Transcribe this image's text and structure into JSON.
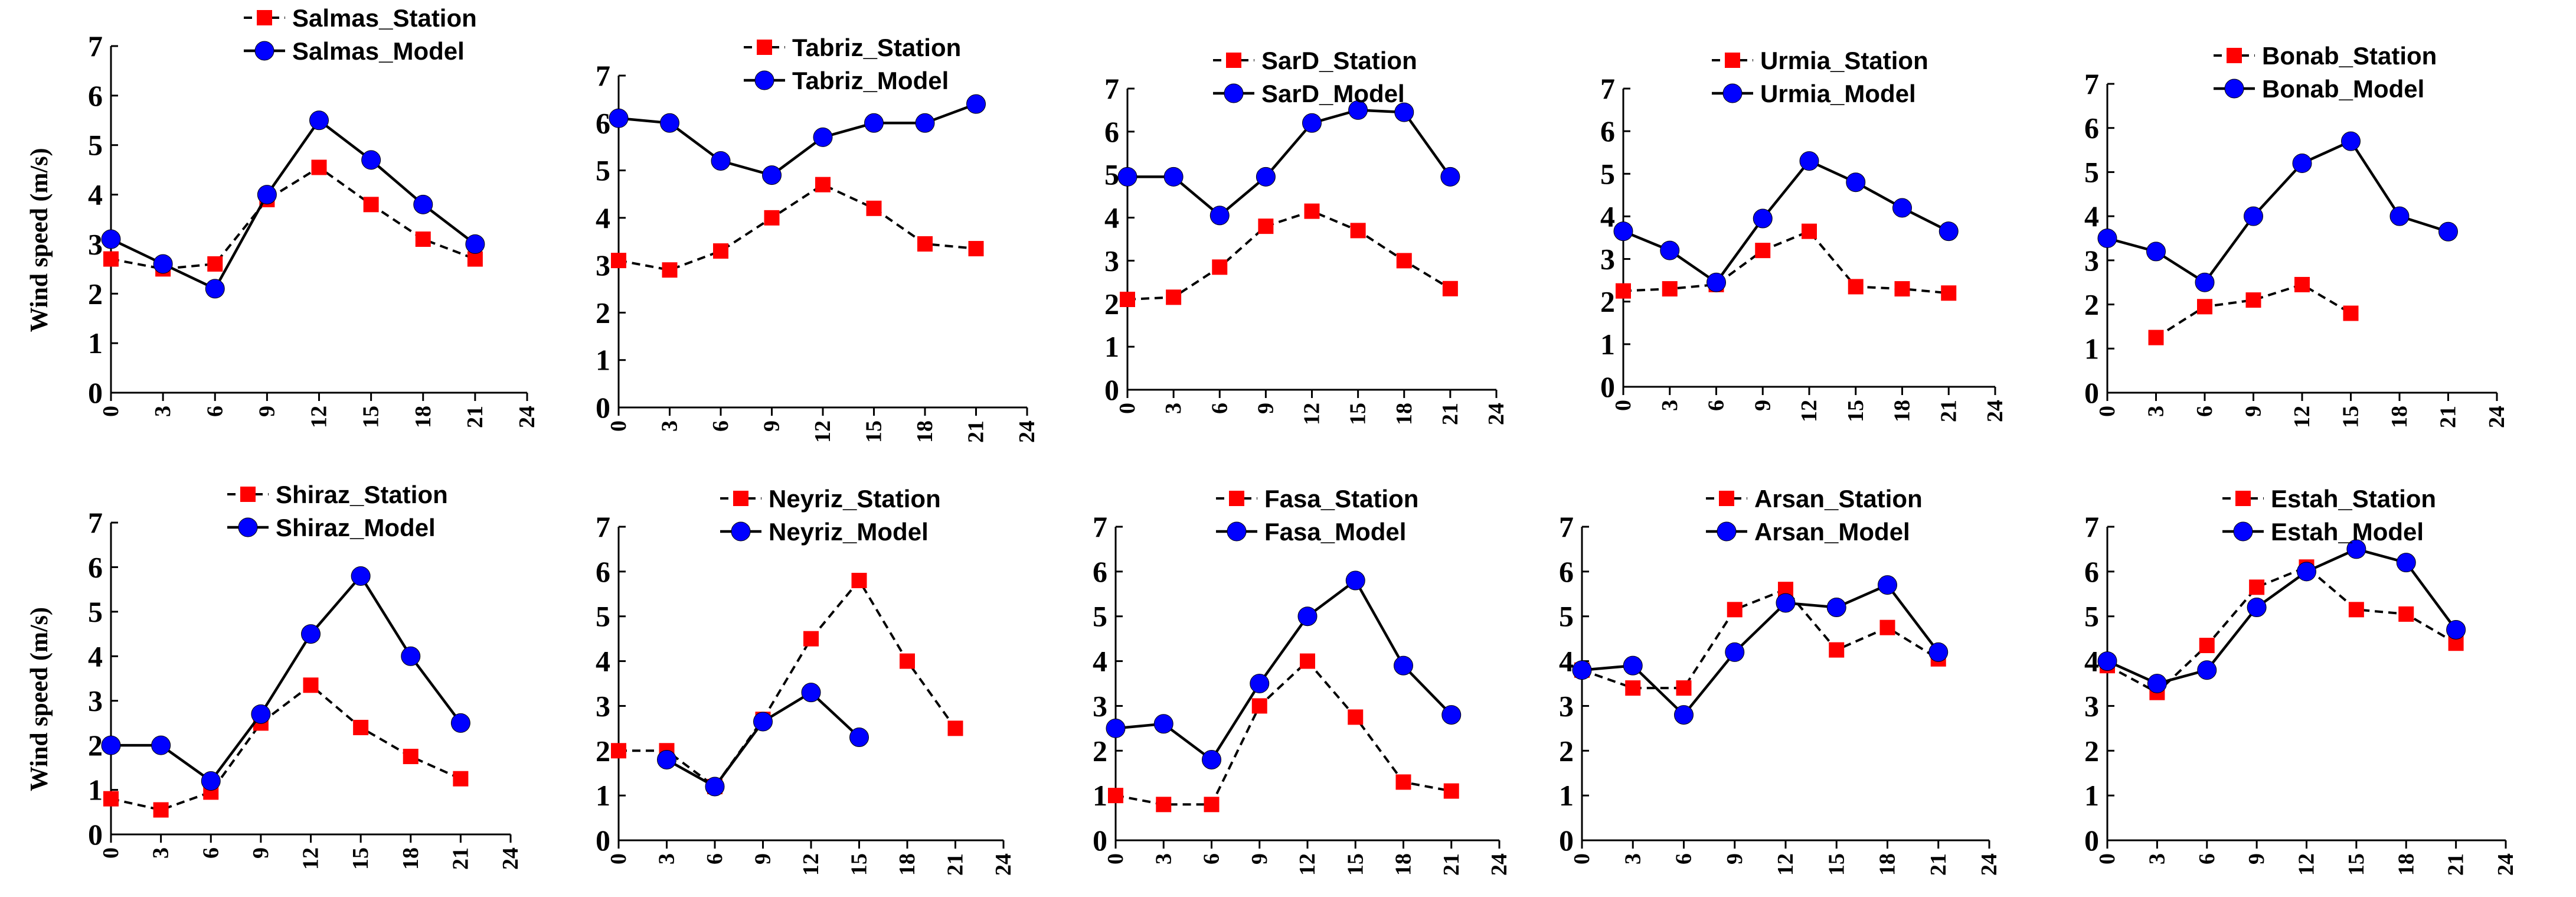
{
  "figure": {
    "y_axis_title": "Wind speed (m/s)",
    "colors": {
      "station": "#ff0000",
      "model": "#0000ff",
      "line": "#000000"
    }
  },
  "chart_data": [
    {
      "type": "line",
      "station": "Salmas",
      "x": [
        0,
        3,
        6,
        9,
        12,
        15,
        18,
        21
      ],
      "xlim": [
        0,
        24
      ],
      "ylim": [
        0,
        7
      ],
      "xticks": [
        0,
        3,
        6,
        9,
        12,
        15,
        18,
        21,
        24
      ],
      "yticks": [
        0,
        1,
        2,
        3,
        4,
        5,
        6,
        7
      ],
      "ylabel": "Wind speed (m/s)",
      "legend": "top-right",
      "series": [
        {
          "name": "Salmas_Station",
          "style": "dashed",
          "marker": "square",
          "color": "#ff0000",
          "values": [
            2.7,
            2.5,
            2.6,
            3.9,
            4.55,
            3.8,
            3.1,
            2.7
          ]
        },
        {
          "name": "Salmas_Model",
          "style": "solid",
          "marker": "circle",
          "color": "#0000ff",
          "values": [
            3.1,
            2.6,
            2.1,
            4.0,
            5.5,
            4.7,
            3.8,
            3.0
          ]
        }
      ]
    },
    {
      "type": "line",
      "station": "Tabriz",
      "x": [
        0,
        3,
        6,
        9,
        12,
        15,
        18,
        21
      ],
      "xlim": [
        0,
        24
      ],
      "ylim": [
        0,
        7
      ],
      "xticks": [
        0,
        3,
        6,
        9,
        12,
        15,
        18,
        21,
        24
      ],
      "yticks": [
        0,
        1,
        2,
        3,
        4,
        5,
        6,
        7
      ],
      "ylabel": "",
      "legend": "top-right",
      "series": [
        {
          "name": "Tabriz_Station",
          "style": "dashed",
          "marker": "square",
          "color": "#ff0000",
          "values": [
            3.1,
            2.9,
            3.3,
            4.0,
            4.7,
            4.2,
            3.45,
            3.35
          ]
        },
        {
          "name": "Tabriz_Model",
          "style": "solid",
          "marker": "circle",
          "color": "#0000ff",
          "values": [
            6.1,
            6.0,
            5.2,
            4.9,
            5.7,
            6.0,
            6.0,
            6.4
          ]
        }
      ]
    },
    {
      "type": "line",
      "station": "SarD",
      "x": [
        0,
        3,
        6,
        9,
        12,
        15,
        18,
        21
      ],
      "xlim": [
        0,
        24
      ],
      "ylim": [
        0,
        7
      ],
      "xticks": [
        0,
        3,
        6,
        9,
        12,
        15,
        18,
        21,
        24
      ],
      "yticks": [
        0,
        1,
        2,
        3,
        4,
        5,
        6,
        7
      ],
      "ylabel": "",
      "legend": "top-right",
      "series": [
        {
          "name": "SarD_Station",
          "style": "dashed",
          "marker": "square",
          "color": "#ff0000",
          "values": [
            2.1,
            2.15,
            2.85,
            3.8,
            4.15,
            3.7,
            3.0,
            2.35
          ]
        },
        {
          "name": "SarD_Model",
          "style": "solid",
          "marker": "circle",
          "color": "#0000ff",
          "values": [
            4.95,
            4.95,
            4.05,
            4.95,
            6.2,
            6.5,
            6.45,
            4.95
          ]
        }
      ]
    },
    {
      "type": "line",
      "station": "Urmia",
      "x": [
        0,
        3,
        6,
        9,
        12,
        15,
        18,
        21
      ],
      "xlim": [
        0,
        24
      ],
      "ylim": [
        0,
        7
      ],
      "xticks": [
        0,
        3,
        6,
        9,
        12,
        15,
        18,
        21,
        24
      ],
      "yticks": [
        0,
        1,
        2,
        3,
        4,
        5,
        6,
        7
      ],
      "ylabel": "",
      "legend": "top-right",
      "series": [
        {
          "name": "Urmia_Station",
          "style": "dashed",
          "marker": "square",
          "color": "#ff0000",
          "values": [
            2.25,
            2.3,
            2.4,
            3.2,
            3.65,
            2.35,
            2.3,
            2.2
          ]
        },
        {
          "name": "Urmia_Model",
          "style": "solid",
          "marker": "circle",
          "color": "#0000ff",
          "values": [
            3.65,
            3.2,
            2.45,
            3.95,
            5.3,
            4.8,
            4.2,
            3.65
          ]
        }
      ]
    },
    {
      "type": "line",
      "station": "Bonab",
      "x": [
        0,
        3,
        6,
        9,
        12,
        15,
        18,
        21
      ],
      "xlim": [
        0,
        24
      ],
      "ylim": [
        0,
        7
      ],
      "xticks": [
        0,
        3,
        6,
        9,
        12,
        15,
        18,
        21,
        24
      ],
      "yticks": [
        0,
        1,
        2,
        3,
        4,
        5,
        6,
        7
      ],
      "ylabel": "",
      "legend": "top-right",
      "series": [
        {
          "name": "Bonab_Station",
          "style": "dashed",
          "marker": "square",
          "color": "#ff0000",
          "x": [
            3,
            6,
            9,
            12,
            15
          ],
          "values": [
            1.25,
            1.95,
            2.1,
            2.45,
            1.8
          ]
        },
        {
          "name": "Bonab_Model",
          "style": "solid",
          "marker": "circle",
          "color": "#0000ff",
          "values": [
            3.5,
            3.2,
            2.5,
            4.0,
            5.2,
            5.7,
            4.0,
            3.65
          ]
        }
      ]
    },
    {
      "type": "line",
      "station": "Shiraz",
      "x": [
        0,
        3,
        6,
        9,
        12,
        15,
        18,
        21
      ],
      "xlim": [
        0,
        24
      ],
      "ylim": [
        0,
        7
      ],
      "xticks": [
        0,
        3,
        6,
        9,
        12,
        15,
        18,
        21,
        24
      ],
      "yticks": [
        0,
        1,
        2,
        3,
        4,
        5,
        6,
        7
      ],
      "ylabel": "Wind speed (m/s)",
      "legend": "top-right",
      "series": [
        {
          "name": "Shiraz_Station",
          "style": "dashed",
          "marker": "square",
          "color": "#ff0000",
          "values": [
            0.8,
            0.55,
            0.95,
            2.5,
            3.35,
            2.4,
            1.75,
            1.25
          ]
        },
        {
          "name": "Shiraz_Model",
          "style": "solid",
          "marker": "circle",
          "color": "#0000ff",
          "values": [
            2.0,
            2.0,
            1.2,
            2.7,
            4.5,
            5.8,
            4.0,
            2.5
          ]
        }
      ]
    },
    {
      "type": "line",
      "station": "Neyriz",
      "x": [
        0,
        3,
        6,
        9,
        12,
        15,
        18,
        21
      ],
      "xlim": [
        0,
        24
      ],
      "ylim": [
        0,
        7
      ],
      "xticks": [
        0,
        3,
        6,
        9,
        12,
        15,
        18,
        21,
        24
      ],
      "yticks": [
        0,
        1,
        2,
        3,
        4,
        5,
        6,
        7
      ],
      "ylabel": "",
      "legend": "top-right",
      "series": [
        {
          "name": "Neyriz_Station",
          "style": "dashed",
          "marker": "square",
          "color": "#ff0000",
          "values": [
            2.0,
            2.0,
            1.2,
            2.7,
            4.5,
            5.8,
            4.0,
            2.5
          ]
        },
        {
          "name": "Neyriz_Model",
          "style": "solid",
          "marker": "circle",
          "color": "#0000ff",
          "x": [
            3,
            6,
            9,
            12,
            15
          ],
          "values": [
            1.8,
            1.2,
            2.65,
            3.3,
            2.3
          ]
        }
      ]
    },
    {
      "type": "line",
      "station": "Fasa",
      "x": [
        0,
        3,
        6,
        9,
        12,
        15,
        18,
        21
      ],
      "xlim": [
        0,
        24
      ],
      "ylim": [
        0,
        7
      ],
      "xticks": [
        0,
        3,
        6,
        9,
        12,
        15,
        18,
        21,
        24
      ],
      "yticks": [
        0,
        1,
        2,
        3,
        4,
        5,
        6,
        7
      ],
      "ylabel": "",
      "legend": "top-right",
      "series": [
        {
          "name": "Fasa_Station",
          "style": "dashed",
          "marker": "square",
          "color": "#ff0000",
          "values": [
            1.0,
            0.8,
            0.8,
            3.0,
            4.0,
            2.75,
            1.3,
            1.1
          ]
        },
        {
          "name": "Fasa_Model",
          "style": "solid",
          "marker": "circle",
          "color": "#0000ff",
          "values": [
            2.5,
            2.6,
            1.8,
            3.5,
            5.0,
            5.8,
            3.9,
            2.8
          ]
        }
      ]
    },
    {
      "type": "line",
      "station": "Arsan",
      "x": [
        0,
        3,
        6,
        9,
        12,
        15,
        18,
        21
      ],
      "xlim": [
        0,
        24
      ],
      "ylim": [
        0,
        7
      ],
      "xticks": [
        0,
        3,
        6,
        9,
        12,
        15,
        18,
        21,
        24
      ],
      "yticks": [
        0,
        1,
        2,
        3,
        4,
        5,
        6,
        7
      ],
      "ylabel": "",
      "legend": "top-right",
      "series": [
        {
          "name": "Arsan_Station",
          "style": "dashed",
          "marker": "square",
          "color": "#ff0000",
          "values": [
            3.8,
            3.4,
            3.4,
            5.15,
            5.6,
            4.25,
            4.75,
            4.05
          ]
        },
        {
          "name": "Arsan_Model",
          "style": "solid",
          "marker": "circle",
          "color": "#0000ff",
          "values": [
            3.8,
            3.9,
            2.8,
            4.2,
            5.3,
            5.2,
            5.7,
            4.2
          ]
        }
      ]
    },
    {
      "type": "line",
      "station": "Estah",
      "x": [
        0,
        3,
        6,
        9,
        12,
        15,
        18,
        21
      ],
      "xlim": [
        0,
        24
      ],
      "ylim": [
        0,
        7
      ],
      "xticks": [
        0,
        3,
        6,
        9,
        12,
        15,
        18,
        21,
        24
      ],
      "yticks": [
        0,
        1,
        2,
        3,
        4,
        5,
        6,
        7
      ],
      "ylabel": "",
      "legend": "top-right",
      "series": [
        {
          "name": "Estah_Station",
          "style": "dashed",
          "marker": "square",
          "color": "#ff0000",
          "values": [
            3.9,
            3.3,
            4.35,
            5.65,
            6.1,
            5.15,
            5.05,
            4.4
          ]
        },
        {
          "name": "Estah_Model",
          "style": "solid",
          "marker": "circle",
          "color": "#0000ff",
          "values": [
            4.0,
            3.5,
            3.8,
            5.2,
            6.0,
            6.5,
            6.2,
            4.7
          ]
        }
      ]
    }
  ]
}
